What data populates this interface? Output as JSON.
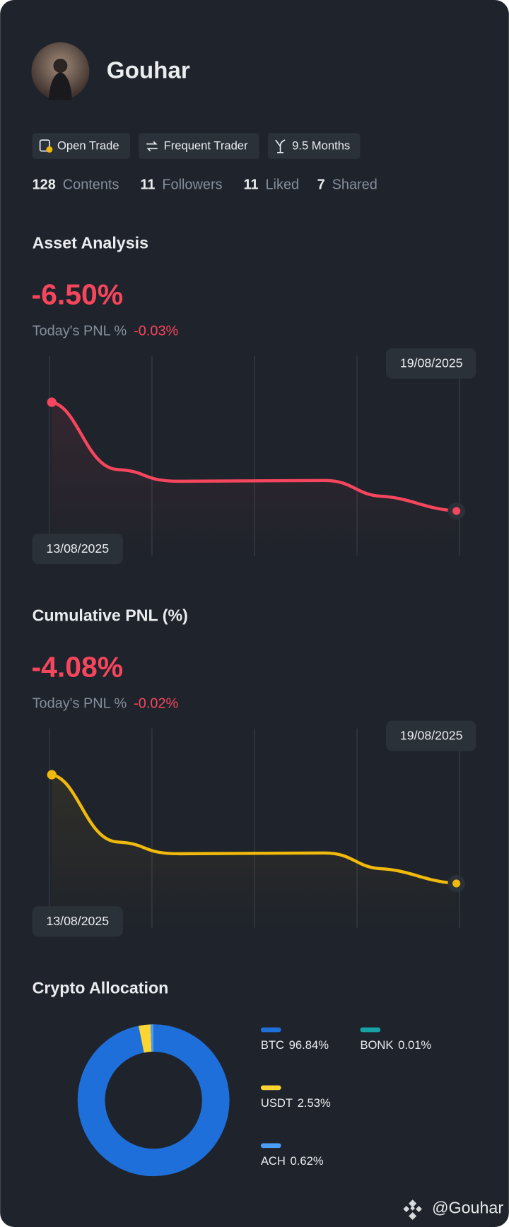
{
  "profile": {
    "name": "Gouhar",
    "badges": [
      "Open Trade",
      "Frequent Trader",
      "9.5 Months"
    ],
    "stats": [
      {
        "count": 128,
        "label": "Contents"
      },
      {
        "count": 11,
        "label": "Followers"
      },
      {
        "count": 11,
        "label": "Liked"
      },
      {
        "count": 7,
        "label": "Shared"
      }
    ]
  },
  "asset_analysis": {
    "title": "Asset Analysis",
    "value": "-6.50%",
    "today_label": "Today's PNL %",
    "today_value": "-0.03%",
    "start_date": "13/08/2025",
    "end_date": "19/08/2025"
  },
  "cumulative_pnl": {
    "title": "Cumulative PNL (%)",
    "value": "-4.08%",
    "today_label": "Today's PNL %",
    "today_value": "-0.02%",
    "start_date": "13/08/2025",
    "end_date": "19/08/2025"
  },
  "crypto_allocation": {
    "title": "Crypto Allocation",
    "items": [
      {
        "name": "BTC",
        "value": 96.84,
        "value_label": "96.84%",
        "color": "#1e6fd9"
      },
      {
        "name": "USDT",
        "value": 2.53,
        "value_label": "2.53%",
        "color": "#fcd535"
      },
      {
        "name": "ACH",
        "value": 0.62,
        "value_label": "0.62%",
        "color": "#4b9df7"
      },
      {
        "name": "BONK",
        "value": 0.01,
        "value_label": "0.01%",
        "color": "#17a2a6"
      }
    ]
  },
  "watermark": "@Gouhar"
}
